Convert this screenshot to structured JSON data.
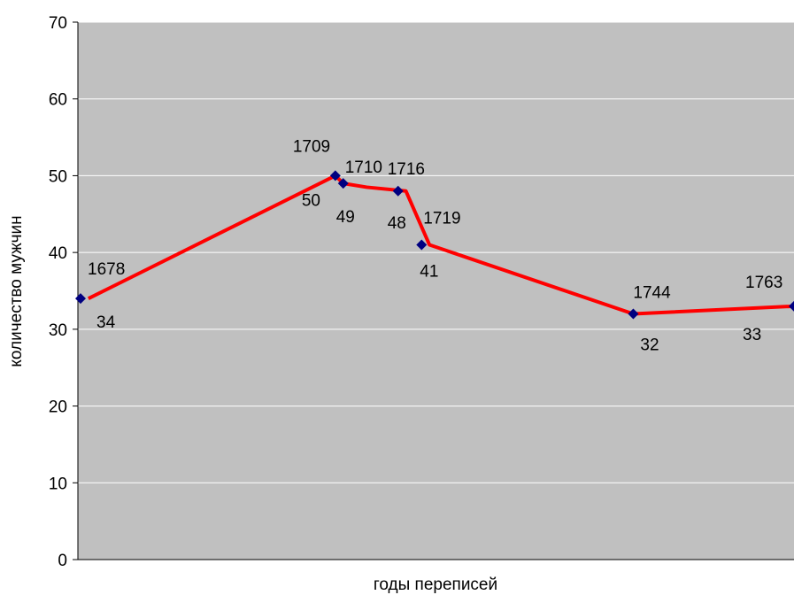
{
  "colors": {
    "plot_background": "#c0c0c0",
    "gridline": "#ffffff",
    "line": "#ff0000",
    "marker": "#000080",
    "axis": "#000000"
  },
  "chart_data": {
    "type": "scatter",
    "title": "",
    "xlabel": "годы переписей",
    "ylabel": "количество мужчин",
    "ylim": [
      0,
      70
    ],
    "yticks": [
      0,
      10,
      20,
      30,
      40,
      50,
      60,
      70
    ],
    "xlim": [
      1678,
      1769
    ],
    "grid": true,
    "legend": "none",
    "points": [
      {
        "year": "1678",
        "x": 1678,
        "y": 34,
        "value_label": "34"
      },
      {
        "year": "1709",
        "x": 1710.5,
        "y": 50,
        "value_label": "50"
      },
      {
        "year": "1710",
        "x": 1711.5,
        "y": 49,
        "value_label": "49"
      },
      {
        "year": "1716",
        "x": 1718.5,
        "y": 48,
        "value_label": "48"
      },
      {
        "year": "1719",
        "x": 1721.5,
        "y": 41,
        "value_label": "41"
      },
      {
        "year": "1744",
        "x": 1748.5,
        "y": 32,
        "value_label": "32"
      },
      {
        "year": "1763",
        "x": 1769,
        "y": 33,
        "value_label": "33"
      }
    ],
    "line_points": [
      [
        1679,
        34
      ],
      [
        1710.5,
        50
      ],
      [
        1711.5,
        49
      ],
      [
        1714.5,
        48.5
      ],
      [
        1719.5,
        48
      ],
      [
        1722.5,
        41
      ],
      [
        1748.5,
        32
      ],
      [
        1769,
        33
      ]
    ]
  }
}
